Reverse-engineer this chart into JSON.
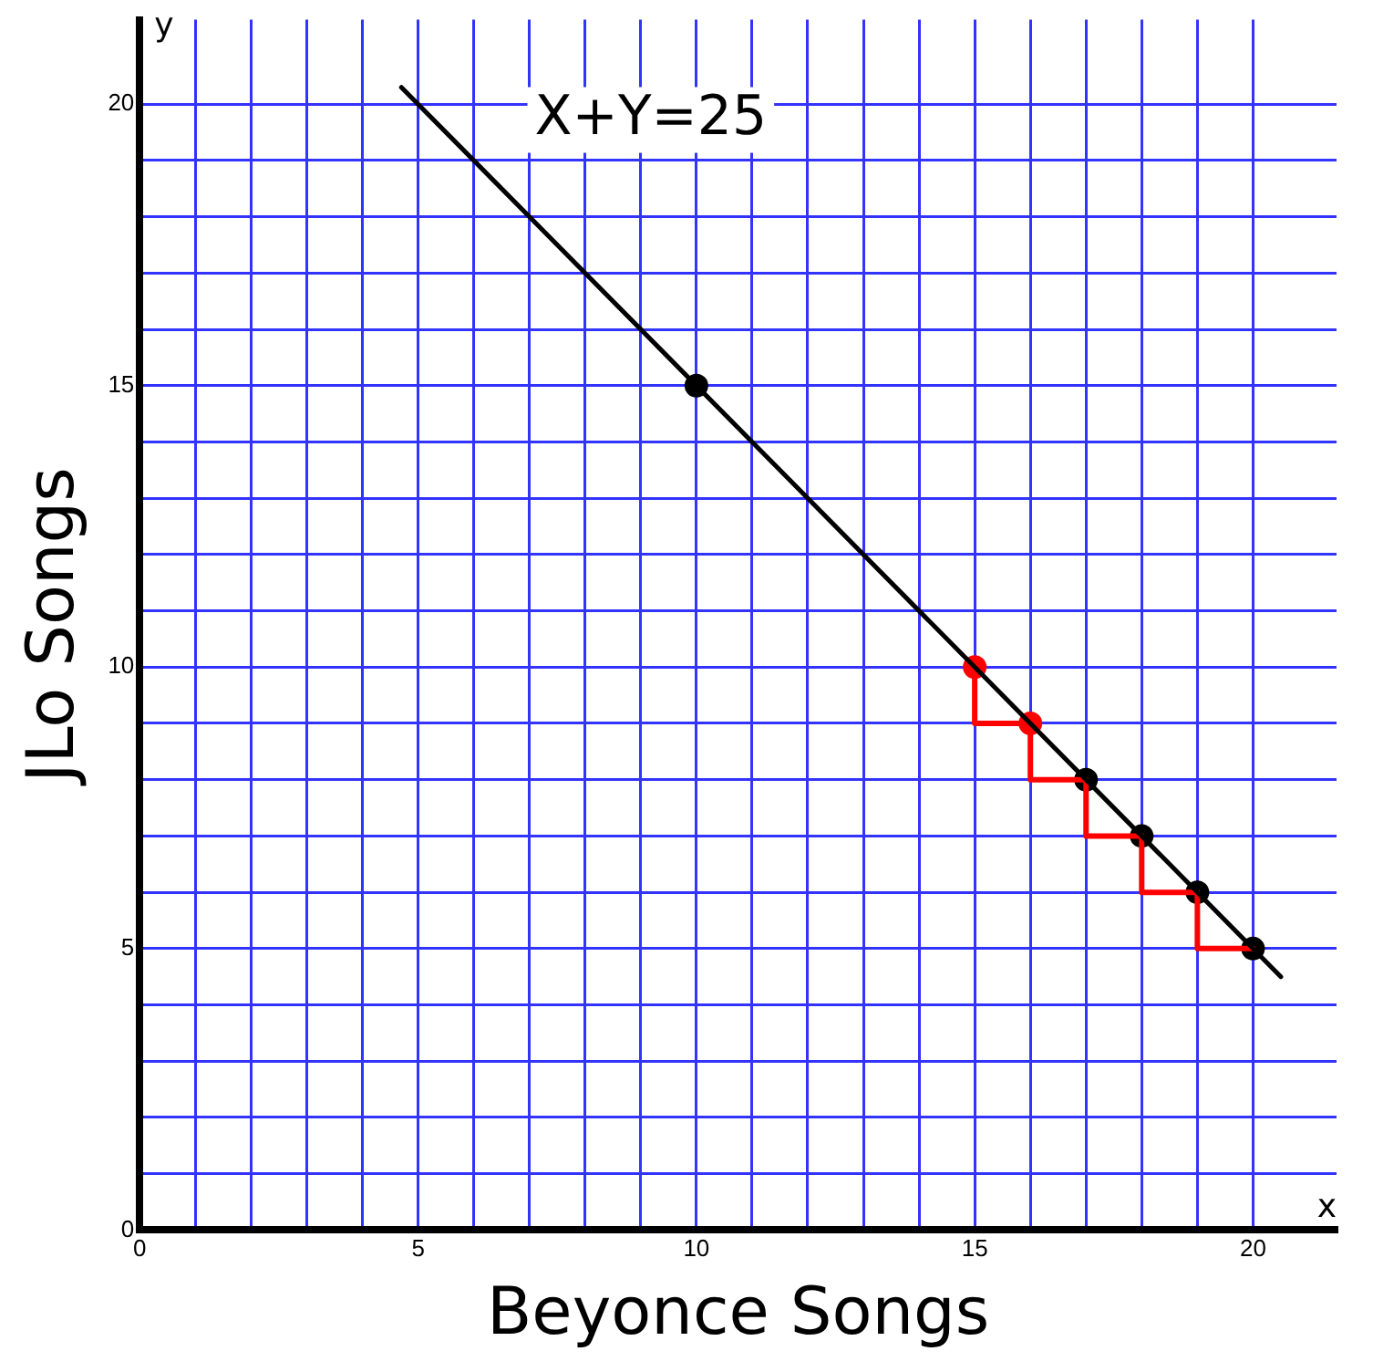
{
  "chart_data": {
    "type": "line",
    "xlabel": "Beyonce Songs",
    "ylabel": "JLo Songs",
    "xlim": [
      0,
      21.5
    ],
    "ylim": [
      0,
      21.5
    ],
    "xticks": [
      0,
      {
        "value": 1,
        "label": null
      },
      {
        "value": 2,
        "label": null
      },
      {
        "value": 3,
        "label": null
      },
      {
        "value": 4,
        "label": null
      },
      5,
      {
        "value": 6,
        "label": null
      },
      {
        "value": 7,
        "label": null
      },
      {
        "value": 8,
        "label": null
      },
      {
        "value": 9,
        "label": null
      },
      10,
      {
        "value": 11,
        "label": null
      },
      {
        "value": 12,
        "label": null
      },
      {
        "value": 13,
        "label": null
      },
      {
        "value": 14,
        "label": null
      },
      15,
      {
        "value": 16,
        "label": null
      },
      {
        "value": 17,
        "label": null
      },
      {
        "value": 18,
        "label": null
      },
      {
        "value": 19,
        "label": null
      },
      20
    ],
    "yticks": [
      0,
      {
        "value": 1,
        "label": null
      },
      {
        "value": 2,
        "label": null
      },
      {
        "value": 3,
        "label": null
      },
      {
        "value": 4,
        "label": null
      },
      5,
      {
        "value": 6,
        "label": null
      },
      {
        "value": 7,
        "label": null
      },
      {
        "value": 8,
        "label": null
      },
      {
        "value": 9,
        "label": null
      },
      10,
      {
        "value": 11,
        "label": null
      },
      {
        "value": 12,
        "label": null
      },
      {
        "value": 13,
        "label": null
      },
      {
        "value": 14,
        "label": null
      },
      15,
      {
        "value": 16,
        "label": null
      },
      {
        "value": 17,
        "label": null
      },
      {
        "value": 18,
        "label": null
      },
      {
        "value": 19,
        "label": null
      },
      20
    ],
    "grid": true,
    "legend": false,
    "series": [
      {
        "color": "#000000",
        "marker": "none",
        "x": [
          4.7,
          20.5
        ],
        "values": [
          20.3,
          4.5
        ]
      },
      {
        "type": "step",
        "color": "#ff0000",
        "marker": "none",
        "x": [
          15,
          15,
          16,
          16,
          17,
          17,
          18,
          18,
          19,
          19,
          20
        ],
        "values": [
          10,
          9,
          9,
          8,
          8,
          7,
          7,
          6,
          6,
          5,
          5
        ]
      },
      {
        "type": "scatter",
        "color": "#000000",
        "marker": "circle",
        "x": [
          10,
          17,
          18,
          19,
          20
        ],
        "values": [
          15,
          8,
          7,
          6,
          5
        ]
      },
      {
        "type": "scatter",
        "color": "#ff0000",
        "marker": "circle",
        "x": [
          15,
          16
        ],
        "values": [
          10,
          9
        ]
      }
    ],
    "annotations": [
      "X+Y=25",
      "y",
      "x"
    ]
  }
}
